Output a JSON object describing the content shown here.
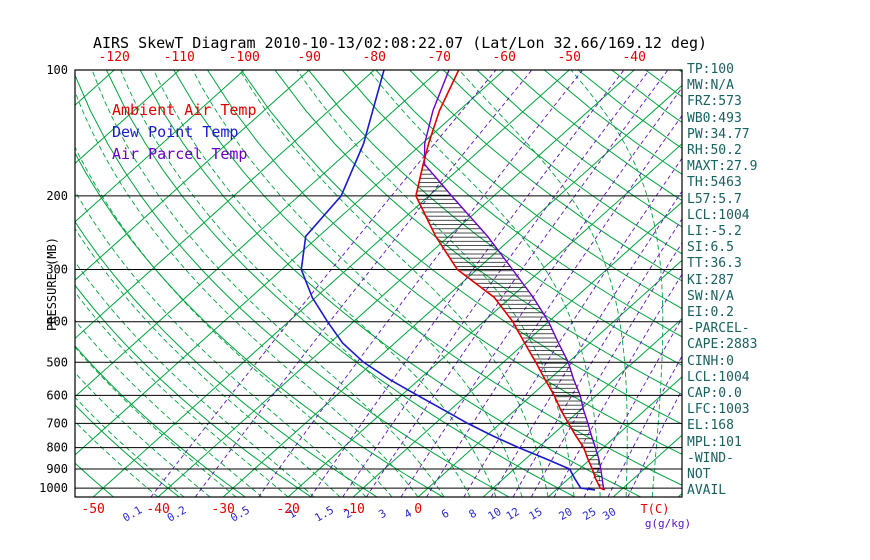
{
  "title": "AIRS SkewT Diagram 2010-10-13/02:08:22.07 (Lat/Lon 32.66/169.12 deg)",
  "legend": [
    {
      "label": "Ambient Air Temp",
      "color": "#e00000"
    },
    {
      "label": "Dew Point Temp",
      "color": "#1a1acc"
    },
    {
      "label": "Air Parcel Temp",
      "color": "#6a00c8"
    }
  ],
  "axes": {
    "pressure_label": "PRESSURE (MB)",
    "pressure_ticks": [
      100,
      200,
      300,
      400,
      500,
      600,
      700,
      800,
      900,
      1000
    ],
    "top_temp_ticks": [
      -120,
      -110,
      -100,
      -90,
      -80,
      -70,
      -60,
      -50,
      -40
    ],
    "bottom_temp_ticks": [
      -50,
      -40,
      -30,
      -20,
      -10,
      0
    ],
    "temp_unit_label": "T(C)",
    "mixing_ratio_ticks": [
      0.1,
      0.2,
      0.5,
      1,
      1.5,
      2,
      3,
      4,
      6,
      8,
      10,
      12,
      15,
      20,
      25,
      30
    ],
    "mixing_unit_label": "g(g/kg)"
  },
  "stats": [
    "TP:100",
    "MW:N/A",
    "FRZ:573",
    "WB0:493",
    "PW:34.77",
    "RH:50.2",
    "MAXT:27.9",
    "TH:5463",
    "L57:5.7",
    "LCL:1004",
    "LI:-5.2",
    "SI:6.5",
    "TT:36.3",
    "KI:287",
    "SW:N/A",
    "EI:0.2",
    "-PARCEL-",
    "CAPE:2883",
    "CINH:0",
    "LCL:1004",
    "CAP:0.0",
    "LFC:1003",
    "EL:168",
    "MPL:101",
    "-WIND-",
    "NOT",
    "AVAIL"
  ],
  "colors": {
    "stats_text": "#19605f",
    "axis_temp": "#e00000",
    "mixing_label": "#2a2acc",
    "pressure_text": "#000000",
    "field_green": "#00a43e",
    "mixing_line": "#5a10c0"
  },
  "chart_data": {
    "type": "line",
    "subtype": "skewt_logp",
    "x_axis": "Temperature (C), skewed 45 deg",
    "y_axis": "Pressure (mb), log scale",
    "pressure_domain": [
      100,
      1050
    ],
    "background": {
      "isotherms": {
        "min": -140,
        "max": 50,
        "step": 10,
        "color": "#00a43e",
        "style": "solid"
      },
      "dry_adiabats": {
        "min": -60,
        "max": 200,
        "step": 10,
        "color": "#00a43e",
        "style": "solid"
      },
      "moist_adiabats": {
        "min": -40,
        "max": 36,
        "step": 4,
        "color": "#00a43e",
        "style": "dashed"
      },
      "mixing_ratio_lines": {
        "values": [
          0.1,
          0.2,
          0.5,
          1,
          1.5,
          2,
          3,
          4,
          6,
          8,
          10,
          12,
          15,
          20,
          25,
          30
        ],
        "color": "#5a10c0",
        "style": "dashed"
      }
    },
    "series": [
      {
        "name": "Ambient Air Temp",
        "color": "#e00000",
        "points": [
          [
            1010,
            27.5
          ],
          [
            1000,
            26.5
          ],
          [
            950,
            24.2
          ],
          [
            900,
            22
          ],
          [
            850,
            19.5
          ],
          [
            800,
            17
          ],
          [
            750,
            13.8
          ],
          [
            700,
            10.5
          ],
          [
            650,
            7
          ],
          [
            600,
            3.5
          ],
          [
            550,
            -0.6
          ],
          [
            500,
            -5
          ],
          [
            450,
            -10
          ],
          [
            400,
            -15.5
          ],
          [
            350,
            -22.5
          ],
          [
            300,
            -33
          ],
          [
            250,
            -42
          ],
          [
            200,
            -52
          ],
          [
            168,
            -56.3
          ],
          [
            150,
            -59
          ],
          [
            125,
            -63
          ],
          [
            100,
            -67
          ]
        ]
      },
      {
        "name": "Dew Point Temp",
        "color": "#1a1acc",
        "points": [
          [
            1010,
            26
          ],
          [
            1000,
            23.5
          ],
          [
            950,
            21
          ],
          [
            900,
            18.5
          ],
          [
            850,
            13
          ],
          [
            800,
            7
          ],
          [
            750,
            1
          ],
          [
            700,
            -5
          ],
          [
            650,
            -11
          ],
          [
            600,
            -17.5
          ],
          [
            550,
            -24.5
          ],
          [
            500,
            -31.5
          ],
          [
            450,
            -38
          ],
          [
            400,
            -44
          ],
          [
            350,
            -50.5
          ],
          [
            300,
            -57
          ],
          [
            250,
            -62
          ],
          [
            200,
            -63.5
          ],
          [
            150,
            -69
          ],
          [
            100,
            -78.5
          ]
        ]
      },
      {
        "name": "Air Parcel Temp",
        "color": "#6a00c8",
        "points": [
          [
            1010,
            27.5
          ],
          [
            1000,
            27
          ],
          [
            950,
            25.2
          ],
          [
            900,
            23.3
          ],
          [
            850,
            21.2
          ],
          [
            800,
            18.8
          ],
          [
            750,
            16.2
          ],
          [
            700,
            13.5
          ],
          [
            650,
            10.5
          ],
          [
            600,
            7.5
          ],
          [
            550,
            3.8
          ],
          [
            500,
            0
          ],
          [
            450,
            -4.8
          ],
          [
            400,
            -10
          ],
          [
            350,
            -16.5
          ],
          [
            300,
            -24.5
          ],
          [
            250,
            -34
          ],
          [
            200,
            -46.5
          ],
          [
            168,
            -56.1
          ],
          [
            150,
            -59.6
          ],
          [
            125,
            -64
          ],
          [
            100,
            -68.5
          ]
        ]
      }
    ],
    "cape_area": {
      "between": [
        "Air Parcel Temp",
        "Ambient Air Temp"
      ],
      "pressure_range": [
        168,
        1010
      ],
      "hatch": "horizontal-black"
    }
  }
}
